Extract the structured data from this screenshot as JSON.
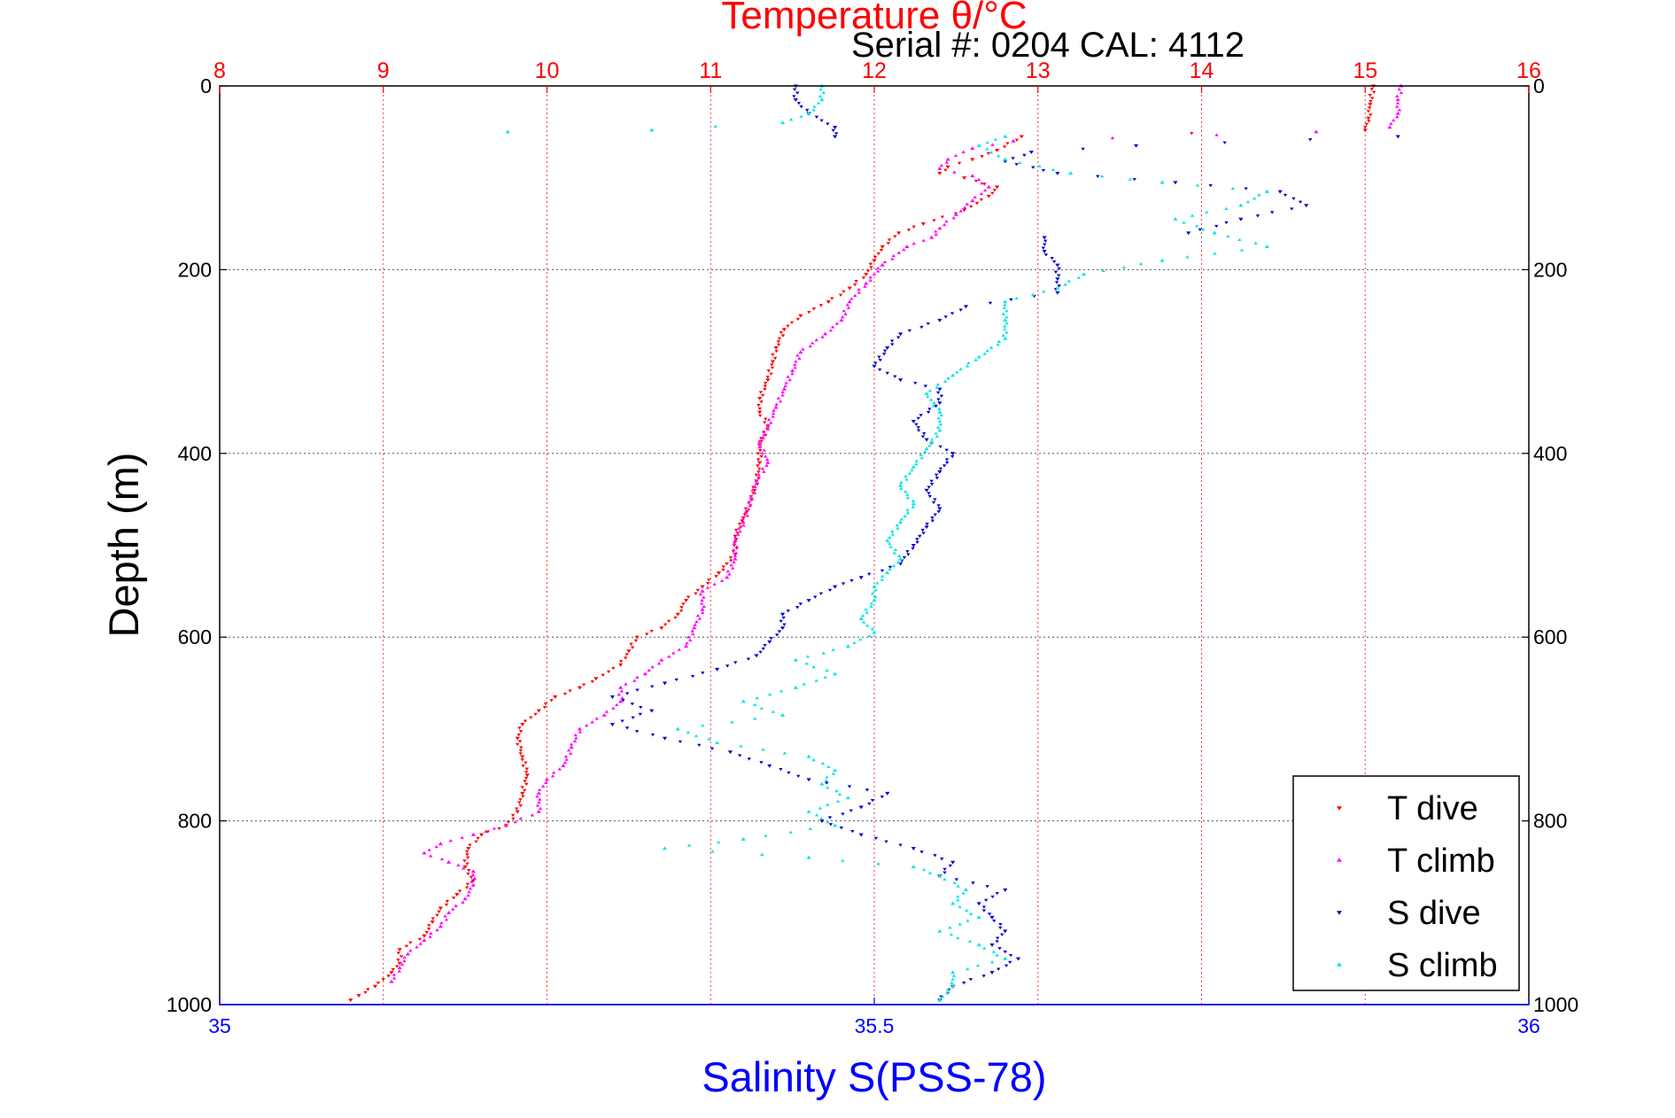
{
  "chart_data": {
    "type": "scatter",
    "title": "Temperature θ/°C",
    "annotation": "Serial #: 0204  CAL: 4112",
    "ylabel": "Depth (m)",
    "xlabel_bottom": "Salinity S(PSS-78)",
    "y_axis": {
      "ticks": [
        "0",
        "200",
        "400",
        "600",
        "800",
        "1000"
      ],
      "range": [
        0,
        1000
      ],
      "reversed": true
    },
    "top_axis": {
      "quantity": "temperature",
      "ticks": [
        "8",
        "9",
        "10",
        "11",
        "12",
        "13",
        "14",
        "15",
        "16"
      ],
      "range": [
        8,
        16
      ],
      "color": "#ff0000"
    },
    "bottom_axis": {
      "quantity": "salinity",
      "ticks": [
        "35",
        "35.5",
        "36"
      ],
      "range": [
        35,
        36
      ],
      "color": "#0000ff"
    },
    "grid": true,
    "legend": {
      "position": "bottom-right"
    },
    "colors": {
      "t_dive": "#ff0000",
      "t_climb": "#ff00ff",
      "s_dive": "#0000cc",
      "s_climb": "#00e5e5",
      "top_axis_text": "#ff0000",
      "bottom_axis_text": "#0000ff"
    },
    "series": [
      {
        "name": "T dive",
        "key": "t_dive",
        "axis": "top",
        "marker": "triangle-down",
        "points": [
          [
            15.05,
            0
          ],
          [
            15.03,
            20
          ],
          [
            15.02,
            35
          ],
          [
            15.0,
            48
          ],
          [
            12.9,
            55
          ],
          [
            12.75,
            70
          ],
          [
            12.6,
            80
          ],
          [
            12.45,
            88
          ],
          [
            12.4,
            95
          ],
          [
            12.55,
            100
          ],
          [
            12.75,
            110
          ],
          [
            12.7,
            120
          ],
          [
            12.55,
            135
          ],
          [
            12.3,
            150
          ],
          [
            12.15,
            160
          ],
          [
            12.05,
            175
          ],
          [
            12.0,
            190
          ],
          [
            11.95,
            205
          ],
          [
            11.85,
            220
          ],
          [
            11.72,
            235
          ],
          [
            11.55,
            250
          ],
          [
            11.45,
            265
          ],
          [
            11.4,
            285
          ],
          [
            11.38,
            300
          ],
          [
            11.35,
            320
          ],
          [
            11.3,
            340
          ],
          [
            11.3,
            355
          ],
          [
            11.35,
            370
          ],
          [
            11.3,
            390
          ],
          [
            11.3,
            410
          ],
          [
            11.28,
            430
          ],
          [
            11.25,
            450
          ],
          [
            11.2,
            470
          ],
          [
            11.15,
            490
          ],
          [
            11.15,
            510
          ],
          [
            11.05,
            530
          ],
          [
            10.95,
            545
          ],
          [
            10.85,
            560
          ],
          [
            10.8,
            575
          ],
          [
            10.7,
            590
          ],
          [
            10.55,
            600
          ],
          [
            10.5,
            615
          ],
          [
            10.45,
            630
          ],
          [
            10.3,
            645
          ],
          [
            10.2,
            655
          ],
          [
            10.05,
            665
          ],
          [
            9.95,
            680
          ],
          [
            9.85,
            695
          ],
          [
            9.82,
            710
          ],
          [
            9.85,
            730
          ],
          [
            9.88,
            750
          ],
          [
            9.85,
            770
          ],
          [
            9.82,
            790
          ],
          [
            9.75,
            805
          ],
          [
            9.6,
            815
          ],
          [
            9.52,
            830
          ],
          [
            9.5,
            850
          ],
          [
            9.55,
            865
          ],
          [
            9.45,
            880
          ],
          [
            9.35,
            895
          ],
          [
            9.3,
            910
          ],
          [
            9.25,
            925
          ],
          [
            9.1,
            940
          ],
          [
            9.1,
            955
          ],
          [
            9.05,
            965
          ],
          [
            8.95,
            980
          ],
          [
            8.85,
            990
          ],
          [
            8.8,
            995
          ]
        ]
      },
      {
        "name": "T climb",
        "key": "t_climb",
        "axis": "top",
        "marker": "triangle-up",
        "points": [
          [
            15.22,
            0
          ],
          [
            15.2,
            15
          ],
          [
            15.2,
            30
          ],
          [
            15.15,
            45
          ],
          [
            14.7,
            50
          ],
          [
            12.85,
            60
          ],
          [
            12.6,
            68
          ],
          [
            12.45,
            80
          ],
          [
            12.4,
            90
          ],
          [
            12.6,
            98
          ],
          [
            12.7,
            110
          ],
          [
            12.6,
            125
          ],
          [
            12.5,
            140
          ],
          [
            12.4,
            155
          ],
          [
            12.35,
            165
          ],
          [
            12.2,
            175
          ],
          [
            12.05,
            195
          ],
          [
            11.95,
            215
          ],
          [
            11.85,
            235
          ],
          [
            11.8,
            255
          ],
          [
            11.7,
            270
          ],
          [
            11.55,
            290
          ],
          [
            11.5,
            310
          ],
          [
            11.45,
            330
          ],
          [
            11.4,
            350
          ],
          [
            11.35,
            370
          ],
          [
            11.3,
            390
          ],
          [
            11.35,
            410
          ],
          [
            11.28,
            430
          ],
          [
            11.25,
            450
          ],
          [
            11.2,
            475
          ],
          [
            11.15,
            495
          ],
          [
            11.15,
            515
          ],
          [
            11.1,
            535
          ],
          [
            10.95,
            550
          ],
          [
            10.95,
            570
          ],
          [
            10.9,
            590
          ],
          [
            10.85,
            610
          ],
          [
            10.7,
            625
          ],
          [
            10.6,
            640
          ],
          [
            10.45,
            655
          ],
          [
            10.45,
            670
          ],
          [
            10.35,
            685
          ],
          [
            10.2,
            700
          ],
          [
            10.15,
            720
          ],
          [
            10.1,
            740
          ],
          [
            10.0,
            755
          ],
          [
            9.95,
            770
          ],
          [
            9.95,
            790
          ],
          [
            9.75,
            805
          ],
          [
            9.55,
            815
          ],
          [
            9.35,
            825
          ],
          [
            9.25,
            835
          ],
          [
            9.4,
            845
          ],
          [
            9.55,
            855
          ],
          [
            9.55,
            870
          ],
          [
            9.5,
            885
          ],
          [
            9.4,
            900
          ],
          [
            9.35,
            915
          ],
          [
            9.25,
            930
          ],
          [
            9.15,
            945
          ],
          [
            9.1,
            960
          ],
          [
            9.05,
            975
          ]
        ]
      },
      {
        "name": "S dive",
        "key": "s_dive",
        "axis": "bottom",
        "marker": "triangle-down",
        "points": [
          [
            35.44,
            0
          ],
          [
            35.44,
            15
          ],
          [
            35.45,
            30
          ],
          [
            35.47,
            45
          ],
          [
            35.47,
            55
          ],
          [
            35.9,
            55
          ],
          [
            35.7,
            65
          ],
          [
            35.62,
            72
          ],
          [
            35.6,
            82
          ],
          [
            35.64,
            95
          ],
          [
            35.73,
            105
          ],
          [
            35.81,
            115
          ],
          [
            35.83,
            130
          ],
          [
            35.78,
            145
          ],
          [
            35.74,
            160
          ],
          [
            35.63,
            165
          ],
          [
            35.63,
            180
          ],
          [
            35.64,
            195
          ],
          [
            35.64,
            210
          ],
          [
            35.64,
            225
          ],
          [
            35.57,
            240
          ],
          [
            35.55,
            255
          ],
          [
            35.52,
            270
          ],
          [
            35.51,
            285
          ],
          [
            35.5,
            305
          ],
          [
            35.52,
            320
          ],
          [
            35.55,
            330
          ],
          [
            35.55,
            345
          ],
          [
            35.53,
            365
          ],
          [
            35.54,
            385
          ],
          [
            35.56,
            400
          ],
          [
            35.55,
            420
          ],
          [
            35.54,
            440
          ],
          [
            35.55,
            460
          ],
          [
            35.54,
            480
          ],
          [
            35.53,
            500
          ],
          [
            35.52,
            520
          ],
          [
            35.49,
            535
          ],
          [
            35.47,
            545
          ],
          [
            35.45,
            560
          ],
          [
            35.43,
            575
          ],
          [
            35.43,
            590
          ],
          [
            35.42,
            605
          ],
          [
            35.41,
            620
          ],
          [
            35.38,
            635
          ],
          [
            35.34,
            650
          ],
          [
            35.3,
            665
          ],
          [
            35.33,
            680
          ],
          [
            35.3,
            695
          ],
          [
            35.34,
            710
          ],
          [
            35.39,
            725
          ],
          [
            35.42,
            740
          ],
          [
            35.45,
            755
          ],
          [
            35.51,
            770
          ],
          [
            35.49,
            785
          ],
          [
            35.46,
            800
          ],
          [
            35.49,
            815
          ],
          [
            35.53,
            830
          ],
          [
            35.56,
            845
          ],
          [
            35.55,
            860
          ],
          [
            35.6,
            875
          ],
          [
            35.58,
            890
          ],
          [
            35.59,
            905
          ],
          [
            35.6,
            920
          ],
          [
            35.59,
            935
          ],
          [
            35.61,
            950
          ],
          [
            35.59,
            965
          ],
          [
            35.56,
            980
          ],
          [
            35.55,
            995
          ]
        ]
      },
      {
        "name": "S climb",
        "key": "s_climb",
        "axis": "bottom",
        "marker": "triangle-up",
        "points": [
          [
            35.46,
            0
          ],
          [
            35.46,
            15
          ],
          [
            35.45,
            30
          ],
          [
            35.43,
            40
          ],
          [
            35.33,
            48
          ],
          [
            35.22,
            50
          ],
          [
            35.6,
            55
          ],
          [
            35.58,
            65
          ],
          [
            35.6,
            80
          ],
          [
            35.65,
            95
          ],
          [
            35.72,
            105
          ],
          [
            35.8,
            115
          ],
          [
            35.78,
            130
          ],
          [
            35.73,
            145
          ],
          [
            35.76,
            160
          ],
          [
            35.8,
            175
          ],
          [
            35.72,
            190
          ],
          [
            35.66,
            205
          ],
          [
            35.64,
            220
          ],
          [
            35.6,
            235
          ],
          [
            35.6,
            255
          ],
          [
            35.6,
            275
          ],
          [
            35.58,
            295
          ],
          [
            35.56,
            315
          ],
          [
            35.54,
            335
          ],
          [
            35.55,
            355
          ],
          [
            35.55,
            375
          ],
          [
            35.54,
            395
          ],
          [
            35.53,
            415
          ],
          [
            35.52,
            435
          ],
          [
            35.53,
            455
          ],
          [
            35.52,
            475
          ],
          [
            35.51,
            495
          ],
          [
            35.52,
            515
          ],
          [
            35.51,
            530
          ],
          [
            35.5,
            545
          ],
          [
            35.5,
            560
          ],
          [
            35.49,
            580
          ],
          [
            35.5,
            595
          ],
          [
            35.48,
            610
          ],
          [
            35.44,
            625
          ],
          [
            35.47,
            640
          ],
          [
            35.44,
            655
          ],
          [
            35.4,
            670
          ],
          [
            35.43,
            685
          ],
          [
            35.35,
            700
          ],
          [
            35.38,
            715
          ],
          [
            35.45,
            730
          ],
          [
            35.47,
            745
          ],
          [
            35.46,
            760
          ],
          [
            35.48,
            775
          ],
          [
            35.45,
            790
          ],
          [
            35.47,
            805
          ],
          [
            35.4,
            820
          ],
          [
            35.34,
            830
          ],
          [
            35.45,
            840
          ],
          [
            35.53,
            850
          ],
          [
            35.55,
            860
          ],
          [
            35.57,
            875
          ],
          [
            35.56,
            890
          ],
          [
            35.58,
            905
          ],
          [
            35.55,
            920
          ],
          [
            35.58,
            935
          ],
          [
            35.6,
            950
          ],
          [
            35.56,
            965
          ],
          [
            35.56,
            980
          ],
          [
            35.55,
            995
          ]
        ]
      }
    ]
  }
}
